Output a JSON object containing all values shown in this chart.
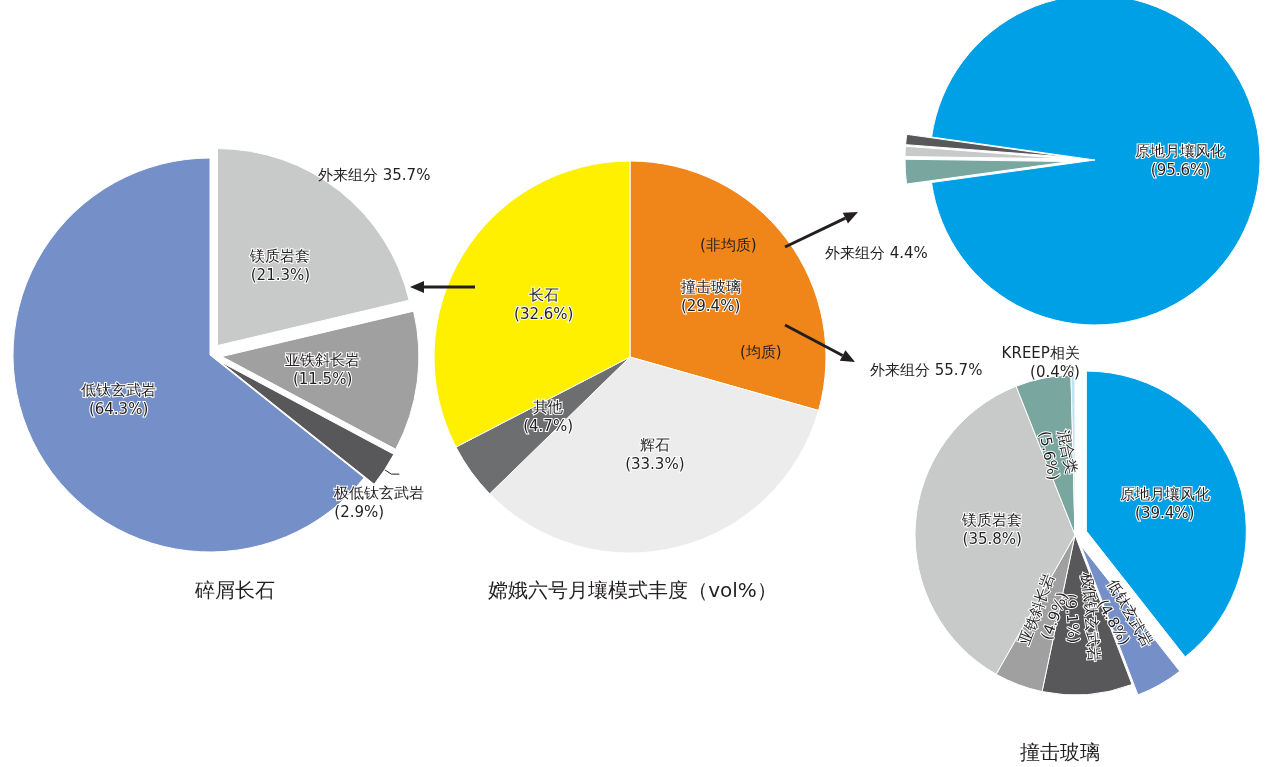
{
  "chart_data": [
    {
      "type": "pie",
      "title": "碎屑长石",
      "categories": [
        "镁质岩套",
        "亚铁斜长岩",
        "极低钛玄武岩",
        "低钛玄武岩"
      ],
      "values": [
        21.3,
        11.5,
        2.9,
        64.3
      ],
      "colors": [
        "#c8c9c9",
        "#a0a0a1",
        "#58585a",
        "#7590c8"
      ],
      "value_labels": [
        "(21.3%)",
        "(11.5%)",
        "(2.9%)",
        "(64.3%)"
      ],
      "annotations": [
        "外来组分 35.7%"
      ]
    },
    {
      "type": "pie",
      "title": "嫦娥六号月壤模式丰度（vol%）",
      "categories": [
        "撞击玻璃",
        "辉石",
        "其他",
        "长石"
      ],
      "values": [
        29.4,
        33.3,
        4.7,
        32.6
      ],
      "colors": [
        "#f0851a",
        "#ececec",
        "#6d6e70",
        "#fff000"
      ],
      "value_labels": [
        "(29.4%)",
        "(33.3%)",
        "(4.7%)",
        "(32.6%)"
      ],
      "annotations": [
        "(非均质)",
        "(均质)"
      ]
    },
    {
      "type": "pie",
      "categories": [
        "原地月壤风化",
        null,
        null,
        null
      ],
      "values": [
        95.6,
        2.4,
        1.0,
        1.0
      ],
      "colors": [
        "#00a0e6",
        "#7aa6a0",
        "#c8c9c9",
        "#58585a"
      ],
      "value_labels": [
        "(95.6%)",
        null,
        null,
        null
      ],
      "annotations": [
        "外来组分 4.4%"
      ]
    },
    {
      "type": "pie",
      "title": "撞击玻璃",
      "categories": [
        "原地月壤风化",
        "低钛玄武岩",
        "极低钛玄武岩",
        "亚铁斜长岩",
        "镁质岩套",
        "混合类",
        "KREEP相关"
      ],
      "values": [
        39.4,
        4.8,
        9.1,
        4.9,
        35.8,
        5.6,
        0.4
      ],
      "colors": [
        "#00a0e6",
        "#7590c8",
        "#58585a",
        "#a0a0a1",
        "#c8c9c9",
        "#7aa6a0",
        "#bfe3ef"
      ],
      "value_labels": [
        "(39.4%)",
        "(4.8%)",
        "(9.1%)",
        "(4.9%)",
        "(35.8%)",
        "(5.6%)",
        "(0.4%)"
      ],
      "annotations": [
        "外来组分 55.7%"
      ]
    }
  ]
}
